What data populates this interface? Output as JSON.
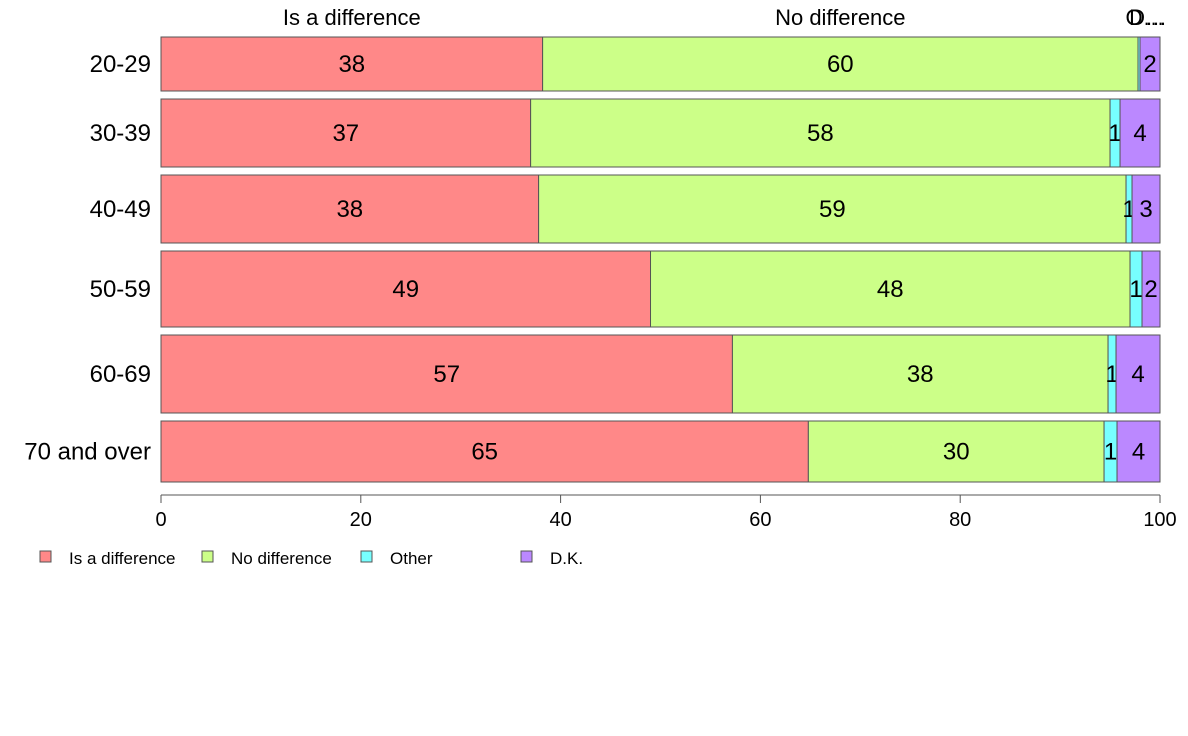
{
  "chart_data": {
    "type": "bar",
    "orientation": "horizontal",
    "stacked": true,
    "categories": [
      "20-29",
      "30-39",
      "40-49",
      "50-59",
      "60-69",
      "70 and over"
    ],
    "series": [
      {
        "name": "Is a difference",
        "color": "#FF8888",
        "values": [
          38.2,
          37,
          37.8,
          49,
          57.2,
          64.8
        ],
        "labels": [
          "38",
          "37",
          "38",
          "49",
          "57",
          "65"
        ]
      },
      {
        "name": "No difference",
        "color": "#CCFF88",
        "values": [
          59.6,
          58,
          58.8,
          48,
          37.6,
          29.6
        ],
        "labels": [
          "60",
          "58",
          "59",
          "48",
          "38",
          "30"
        ]
      },
      {
        "name": "Other",
        "color": "#77FFFF",
        "values": [
          0.2,
          1,
          0.6,
          1.2,
          0.8,
          1.3
        ],
        "labels": [
          "",
          "1",
          "1",
          "1",
          "1",
          "1"
        ]
      },
      {
        "name": "D.K.",
        "color": "#BB88FF",
        "values": [
          2,
          4,
          2.8,
          1.8,
          4.4,
          4.3
        ],
        "labels": [
          "2",
          "4",
          "3",
          "2",
          "4",
          "4"
        ]
      }
    ],
    "top_labels": [
      "Is a difference",
      "No difference",
      "O…",
      "D…"
    ],
    "xlim": [
      0,
      100
    ],
    "xticks": [
      "0",
      "20",
      "40",
      "60",
      "80",
      "100"
    ],
    "legend_position": "bottom-left",
    "grid": false
  }
}
